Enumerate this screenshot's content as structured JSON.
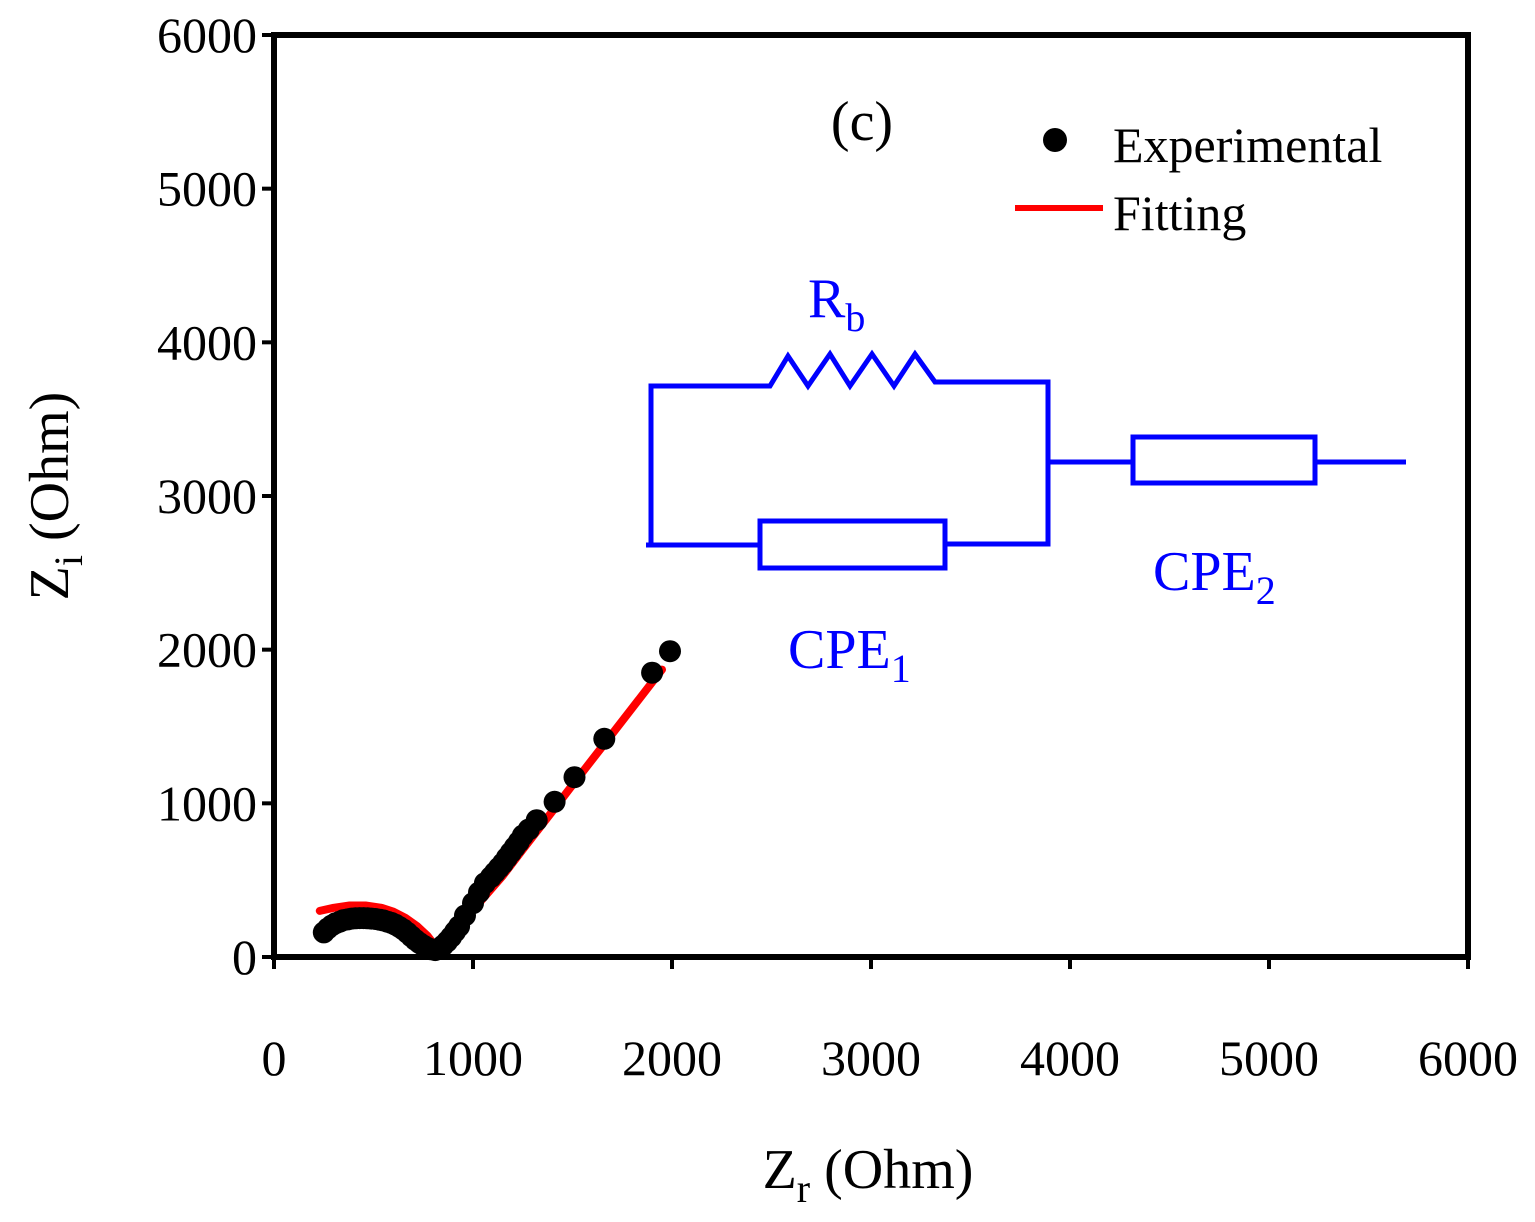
{
  "chart_data": {
    "type": "scatter",
    "panel_label": "(c)",
    "xlabel": {
      "main": "Z",
      "sub": "r",
      "rest": " (Ohm)"
    },
    "ylabel": {
      "main": "Z",
      "sub": "i",
      "rest": " (Ohm)"
    },
    "xlim": [
      0,
      6000
    ],
    "ylim": [
      0,
      6000
    ],
    "xticks": [
      0,
      1000,
      2000,
      3000,
      4000,
      5000,
      6000
    ],
    "yticks": [
      0,
      1000,
      2000,
      3000,
      4000,
      5000,
      6000
    ],
    "xtick_labels": [
      "0",
      "1000",
      "2000",
      "3000",
      "4000",
      "5000",
      "6000"
    ],
    "ytick_labels": [
      "0",
      "1000",
      "2000",
      "3000",
      "4000",
      "5000",
      "6000"
    ],
    "grid": false,
    "legend_position": "top-right",
    "series": [
      {
        "name": "Experimental",
        "kind": "scatter",
        "color": "#000000",
        "x": [
          250,
          270,
          290,
          310,
          330,
          350,
          370,
          390,
          410,
          430,
          450,
          470,
          490,
          510,
          530,
          550,
          570,
          590,
          610,
          630,
          650,
          670,
          690,
          710,
          730,
          750,
          770,
          790,
          810,
          830,
          850,
          870,
          890,
          910,
          930,
          960,
          1000,
          1030,
          1060,
          1090,
          1110,
          1130,
          1150,
          1170,
          1190,
          1210,
          1230,
          1250,
          1280,
          1320,
          1410,
          1510,
          1660,
          1900,
          1990
        ],
        "y": [
          160,
          185,
          205,
          220,
          230,
          240,
          245,
          250,
          252,
          253,
          253,
          252,
          250,
          247,
          243,
          238,
          230,
          222,
          210,
          195,
          178,
          158,
          135,
          112,
          92,
          75,
          60,
          50,
          45,
          55,
          75,
          100,
          130,
          165,
          200,
          270,
          350,
          420,
          480,
          520,
          550,
          580,
          610,
          645,
          680,
          715,
          750,
          790,
          830,
          890,
          1010,
          1170,
          1420,
          1850,
          1990
        ]
      },
      {
        "name": "Fitting",
        "kind": "line",
        "color": "#ff0000",
        "x": [
          230,
          300,
          380,
          460,
          540,
          600,
          660,
          720,
          770,
          800,
          830,
          870,
          920,
          980,
          1050,
          1150,
          1250,
          1400,
          1500,
          1650,
          1800,
          1950
        ],
        "y": [
          300,
          320,
          335,
          335,
          320,
          295,
          255,
          200,
          140,
          90,
          70,
          110,
          180,
          270,
          380,
          530,
          700,
          950,
          1120,
          1370,
          1620,
          1870
        ]
      }
    ]
  },
  "circuit": {
    "color": "#0000ff",
    "rb": {
      "main": "R",
      "sub": "b"
    },
    "cpe1": {
      "main": "CPE",
      "sub": "1"
    },
    "cpe2": {
      "main": "CPE",
      "sub": "2"
    }
  }
}
